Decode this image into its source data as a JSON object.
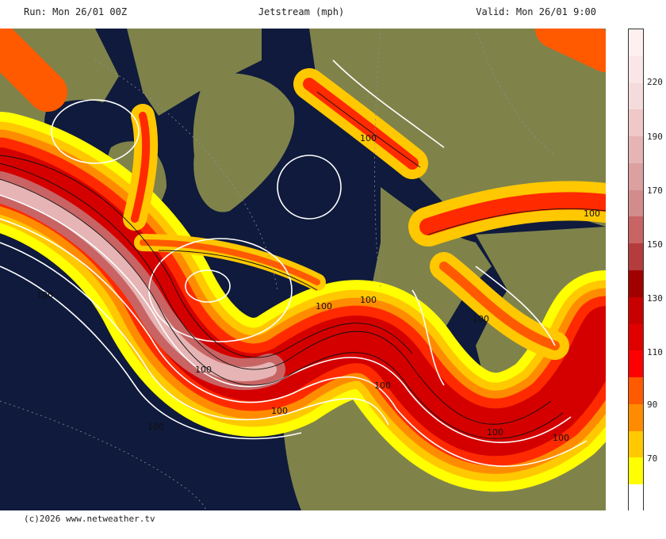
{
  "header": {
    "run": "Run: Mon 26/01 00Z",
    "title": "Jetstream (mph)",
    "valid": "Valid: Mon 26/01 9:00"
  },
  "legend": {
    "labels": [
      "220",
      "190",
      "170",
      "150",
      "130",
      "110",
      "90",
      "70"
    ],
    "colors": [
      "#ffffff",
      "#ffff00",
      "#ffc800",
      "#ff8c00",
      "#ff5a00",
      "#ff0000",
      "#e00000",
      "#c80000",
      "#a00000",
      "#b43c3c",
      "#c86464",
      "#d28c8c",
      "#dca0a0",
      "#e6b4b4",
      "#f0c8c8",
      "#f5dcdc",
      "#fae6e6",
      "#fff0f0"
    ]
  },
  "map": {
    "contour_labels": [
      "100",
      "100",
      "100",
      "100",
      "100",
      "100",
      "100",
      "100",
      "100",
      "100",
      "100",
      "100"
    ]
  },
  "footer": {
    "copyright": "(c)2026 www.netweather.tv"
  }
}
